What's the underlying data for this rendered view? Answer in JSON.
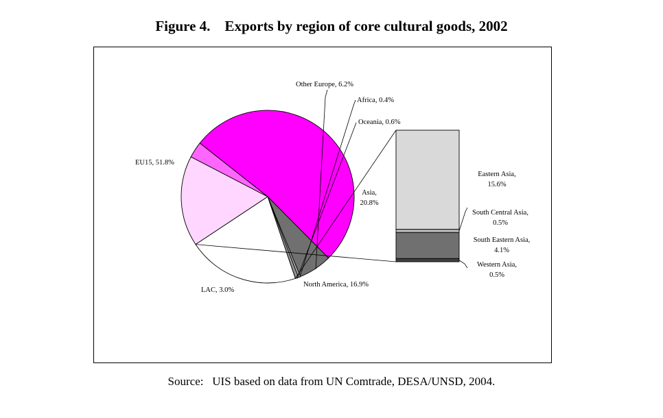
{
  "figure": {
    "title": "Figure 4.    Exports by region of core cultural goods, 2002",
    "source": "Source:   UIS based on data from UN Comtrade, DESA/UNSD, 2004."
  },
  "colors": {
    "EU15": "#ff00ff",
    "Other Europe": "#707070",
    "Africa": "#b0b0b0",
    "Oceania": "#909090",
    "Asia": "#ffffff",
    "North America": "#ffd6ff",
    "LAC": "#ff66ff",
    "Eastern Asia": "#d9d9d9",
    "South Central Asia": "#b5b5b5",
    "South Eastern Asia": "#707070",
    "Western Asia": "#404040"
  },
  "chart_data": {
    "type": "pie",
    "title": "Exports by region of core cultural goods, 2002",
    "unit": "%",
    "slices": [
      {
        "name": "EU15",
        "value": 51.8,
        "label": "EU15, 51.8%"
      },
      {
        "name": "Other Europe",
        "value": 6.2,
        "label": "Other Europe, 6.2%"
      },
      {
        "name": "Africa",
        "value": 0.4,
        "label": "Africa, 0.4%"
      },
      {
        "name": "Oceania",
        "value": 0.6,
        "label": "Oceania, 0.6%"
      },
      {
        "name": "Asia",
        "value": 20.8,
        "label_lines": [
          "Asia,",
          "20.8%"
        ]
      },
      {
        "name": "North America",
        "value": 16.9,
        "label": "North America, 16.9%"
      },
      {
        "name": "LAC",
        "value": 3.0,
        "label": "LAC, 3.0%"
      }
    ],
    "breakdown": {
      "parent": "Asia",
      "type": "stacked-bar",
      "segments": [
        {
          "name": "Eastern Asia",
          "value": 15.6,
          "label_lines": [
            "Eastern Asia,",
            "15.6%"
          ]
        },
        {
          "name": "South Central Asia",
          "value": 0.5,
          "label_lines": [
            "South Central Asia,",
            "0.5%"
          ]
        },
        {
          "name": "South Eastern Asia",
          "value": 4.1,
          "label_lines": [
            "South Eastern Asia,",
            "4.1%"
          ]
        },
        {
          "name": "Western Asia",
          "value": 0.5,
          "label_lines": [
            "Western Asia,",
            "0.5%"
          ]
        }
      ]
    }
  }
}
